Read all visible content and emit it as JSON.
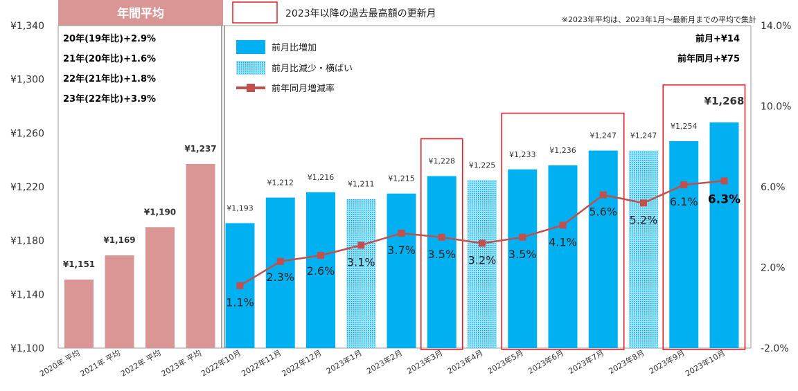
{
  "chart_data": {
    "type": "bar",
    "categories": [
      "2020年 平均",
      "2021年 平均",
      "2022年 平均",
      "2023年 平均",
      "2022年10月",
      "2022年11月",
      "2022年12月",
      "2023年1月",
      "2023年2月",
      "2023年3月",
      "2023年4月",
      "2023年5月",
      "2023年6月",
      "2023年7月",
      "2023年8月",
      "2023年9月",
      "2023年10月"
    ],
    "values": [
      1151,
      1169,
      1190,
      1237,
      1193,
      1212,
      1216,
      1211,
      1215,
      1228,
      1225,
      1233,
      1236,
      1247,
      1247,
      1254,
      1268
    ],
    "value_labels": [
      "¥1,151",
      "¥1,169",
      "¥1,190",
      "¥1,237",
      "¥1,193",
      "¥1,212",
      "¥1,216",
      "¥1,211",
      "¥1,215",
      "¥1,228",
      "¥1,225",
      "¥1,233",
      "¥1,236",
      "¥1,247",
      "¥1,247",
      "¥1,254",
      "¥1,268"
    ],
    "bar_kinds": [
      "annual",
      "annual",
      "annual",
      "annual",
      "increase",
      "increase",
      "increase",
      "flat",
      "increase",
      "increase",
      "flat",
      "increase",
      "increase",
      "increase",
      "flat",
      "increase",
      "increase"
    ],
    "record_highlight_groups": [
      [
        9,
        9
      ],
      [
        11,
        13
      ],
      [
        15,
        16
      ]
    ],
    "ylim": [
      1100,
      1340
    ],
    "yticks": [
      "¥1,100",
      "¥1,140",
      "¥1,180",
      "¥1,220",
      "¥1,260",
      "¥1,300",
      "¥1,340"
    ],
    "y2lim": [
      -2.0,
      14.0
    ],
    "y2ticks": [
      "-2.0%",
      "2.0%",
      "6.0%",
      "10.0%",
      "14.0%"
    ],
    "line_series": {
      "name": "前年同月増減率",
      "start_index": 4,
      "values": [
        1.1,
        2.3,
        2.6,
        3.1,
        3.7,
        3.5,
        3.2,
        3.5,
        4.1,
        5.6,
        5.2,
        6.1,
        6.3
      ],
      "labels": [
        "1.1%",
        "2.3%",
        "2.6%",
        "3.1%",
        "3.7%",
        "3.5%",
        "3.2%",
        "3.5%",
        "4.1%",
        "5.6%",
        "5.2%",
        "6.1%",
        "6.3%"
      ]
    },
    "legend": [
      {
        "key": "increase",
        "label": "前月比増加"
      },
      {
        "key": "flat",
        "label": "前月比減少・横ばい"
      },
      {
        "key": "line",
        "label": "前年同月増減率"
      }
    ],
    "colors": {
      "annual": "#d99694",
      "increase": "#00b0f0",
      "flat_bg": "#a6e3f8",
      "flat_dot": "#00b0f0",
      "line": "#c0504d",
      "highlight": "#e0202a",
      "header_bg": "#d99694"
    }
  },
  "header": {
    "annual_title": "年間平均",
    "record_legend": "2023年以降の過去最高額の更新月",
    "note": "※2023年平均は、2023年1月～最新月までの平均で集計"
  },
  "annual_changes": [
    "20年(19年比)+2.9%",
    "21年(20年比)+1.6%",
    "22年(21年比)+1.8%",
    "23年(22年比)+3.9%"
  ],
  "summary": {
    "mom": "前月+¥14",
    "yoy": "前年同月+¥75"
  }
}
